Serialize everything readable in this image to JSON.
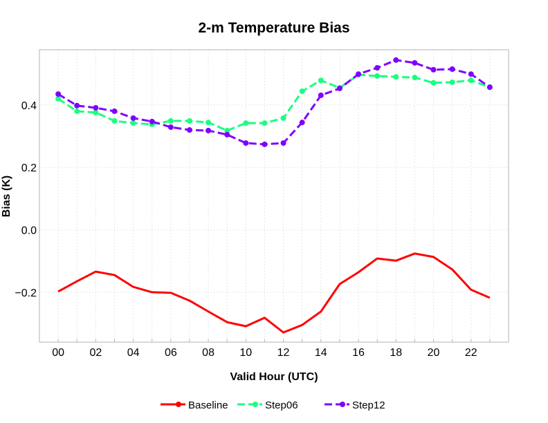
{
  "chart_data": {
    "type": "line",
    "title": "2-m Temperature Bias",
    "xlabel": "Valid Hour (UTC)",
    "ylabel": "Bias (K)",
    "xlim": [
      -1,
      24
    ],
    "ylim": [
      -0.36,
      0.577
    ],
    "grid": true,
    "legend_position": "bottom",
    "x": [
      "00",
      "01",
      "02",
      "03",
      "04",
      "05",
      "06",
      "07",
      "08",
      "09",
      "10",
      "11",
      "12",
      "13",
      "14",
      "15",
      "16",
      "17",
      "18",
      "19",
      "20",
      "21",
      "22",
      "23"
    ],
    "xticks": [
      "00",
      "02",
      "04",
      "06",
      "08",
      "10",
      "12",
      "14",
      "16",
      "18",
      "20",
      "22"
    ],
    "yticks": [
      {
        "value": -0.2,
        "label": "−0.2"
      },
      {
        "value": 0.0,
        "label": "0.0"
      },
      {
        "value": 0.2,
        "label": "0.2"
      },
      {
        "value": 0.4,
        "label": "0.4"
      }
    ],
    "series": [
      {
        "name": "Baseline",
        "color": "#ff0000",
        "dash": false,
        "markers": false,
        "values": [
          -0.198,
          -0.165,
          -0.134,
          -0.145,
          -0.183,
          -0.2,
          -0.202,
          -0.227,
          -0.262,
          -0.296,
          -0.309,
          -0.282,
          -0.329,
          -0.305,
          -0.262,
          -0.174,
          -0.136,
          -0.092,
          -0.099,
          -0.076,
          -0.087,
          -0.127,
          -0.192,
          -0.218
        ]
      },
      {
        "name": "Step06",
        "color": "#19ff80",
        "dash": true,
        "markers": true,
        "values": [
          0.42,
          0.38,
          0.376,
          0.349,
          0.342,
          0.338,
          0.349,
          0.349,
          0.344,
          0.318,
          0.342,
          0.342,
          0.358,
          0.444,
          0.479,
          0.455,
          0.497,
          0.493,
          0.49,
          0.488,
          0.471,
          0.473,
          0.479,
          0.457
        ]
      },
      {
        "name": "Step12",
        "color": "#7f00ff",
        "dash": true,
        "markers": true,
        "values": [
          0.435,
          0.398,
          0.391,
          0.38,
          0.358,
          0.347,
          0.329,
          0.32,
          0.318,
          0.305,
          0.278,
          0.274,
          0.278,
          0.344,
          0.431,
          0.453,
          0.499,
          0.519,
          0.544,
          0.535,
          0.513,
          0.515,
          0.499,
          0.457
        ]
      }
    ]
  }
}
